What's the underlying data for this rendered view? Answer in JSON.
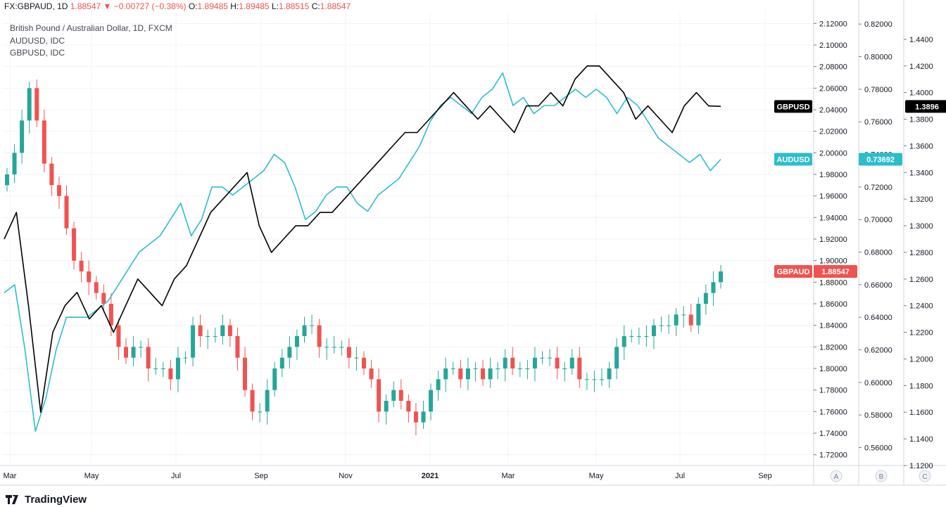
{
  "header": {
    "symbol": "FX:GBPAUD, 1D",
    "last": "1.88547",
    "change_arrow": "▼",
    "change": "−0.00727 (−0.38%)",
    "o_label": "O:",
    "o": "1.89485",
    "h_label": "H:",
    "h": "1.89485",
    "l_label": "L:",
    "l": "1.88515",
    "c_label": "C:",
    "c": "1.88547"
  },
  "legend": [
    "British Pound / Australian Dollar, 1D, FXCM",
    "AUDUSD, IDC",
    "GBPUSD, IDC"
  ],
  "brand": "TradingView",
  "colors": {
    "gbpaud_down": "#ef5350",
    "gbpaud_up": "#26a69a",
    "audusd": "#2cbdcc",
    "gbpusd": "#000000",
    "grid": "#f0f3fa"
  },
  "chart_data": {
    "type": "line",
    "x_axis": {
      "labels": [
        "Mar",
        "May",
        "Jul",
        "Sep",
        "Nov",
        "2021",
        "Mar",
        "May",
        "Jul",
        "Sep"
      ],
      "start": "2020-03",
      "end": "2021-09"
    },
    "axes": [
      {
        "id": "A",
        "series": "GBPAUD",
        "ylim": [
          1.71,
          2.13
        ],
        "ticks": [
          "2.12000",
          "2.10000",
          "2.08000",
          "2.06000",
          "2.04000",
          "2.02000",
          "2.00000",
          "1.98000",
          "1.96000",
          "1.94000",
          "1.92000",
          "1.90000",
          "1.88000",
          "1.86000",
          "1.84000",
          "1.82000",
          "1.80000",
          "1.78000",
          "1.76000",
          "1.74000",
          "1.72000"
        ],
        "last_label": "1.88547"
      },
      {
        "id": "B",
        "series": "AUDUSD",
        "ylim": [
          0.549,
          0.827
        ],
        "ticks": [
          "0.82000",
          "0.80000",
          "0.78000",
          "0.76000",
          "0.74000",
          "0.72000",
          "0.70000",
          "0.68000",
          "0.66000",
          "0.64000",
          "0.62000",
          "0.60000",
          "0.58000",
          "0.56000"
        ],
        "last_label": "0.73692"
      },
      {
        "id": "C",
        "series": "GBPUSD",
        "ylim": [
          1.12,
          1.46
        ],
        "ticks": [
          "1.4400",
          "1.4200",
          "1.4000",
          "1.3800",
          "1.3600",
          "1.3400",
          "1.3200",
          "1.3000",
          "1.2800",
          "1.2600",
          "1.2400",
          "1.2200",
          "1.2000",
          "1.1800",
          "1.1600",
          "1.1400",
          "1.1200"
        ],
        "last_label": "1.3896"
      }
    ],
    "series": [
      {
        "name": "GBPAUD",
        "style": "candles",
        "badge": "GBPAUD",
        "closes": [
          1.98,
          2.0,
          2.03,
          2.06,
          2.03,
          1.99,
          1.97,
          1.96,
          1.93,
          1.9,
          1.89,
          1.88,
          1.87,
          1.86,
          1.84,
          1.82,
          1.81,
          1.82,
          1.82,
          1.8,
          1.8,
          1.8,
          1.79,
          1.81,
          1.81,
          1.84,
          1.83,
          1.83,
          1.83,
          1.84,
          1.83,
          1.81,
          1.78,
          1.76,
          1.76,
          1.78,
          1.8,
          1.81,
          1.82,
          1.83,
          1.84,
          1.84,
          1.82,
          1.82,
          1.82,
          1.82,
          1.81,
          1.81,
          1.8,
          1.79,
          1.76,
          1.77,
          1.78,
          1.77,
          1.76,
          1.75,
          1.76,
          1.78,
          1.79,
          1.8,
          1.8,
          1.79,
          1.8,
          1.8,
          1.79,
          1.8,
          1.8,
          1.81,
          1.8,
          1.8,
          1.8,
          1.81,
          1.81,
          1.81,
          1.8,
          1.8,
          1.81,
          1.79,
          1.79,
          1.79,
          1.79,
          1.8,
          1.82,
          1.83,
          1.83,
          1.83,
          1.83,
          1.84,
          1.84,
          1.84,
          1.85,
          1.85,
          1.84,
          1.86,
          1.87,
          1.88,
          1.89
        ]
      },
      {
        "name": "AUDUSD",
        "style": "line",
        "badge": "AUDUSD",
        "values": [
          0.655,
          0.66,
          0.62,
          0.57,
          0.59,
          0.62,
          0.64,
          0.64,
          0.64,
          0.645,
          0.65,
          0.66,
          0.67,
          0.68,
          0.685,
          0.69,
          0.7,
          0.71,
          0.69,
          0.7,
          0.72,
          0.72,
          0.715,
          0.72,
          0.725,
          0.73,
          0.74,
          0.735,
          0.72,
          0.7,
          0.705,
          0.715,
          0.72,
          0.72,
          0.71,
          0.705,
          0.715,
          0.72,
          0.725,
          0.735,
          0.745,
          0.76,
          0.77,
          0.775,
          0.77,
          0.765,
          0.775,
          0.78,
          0.79,
          0.77,
          0.775,
          0.765,
          0.77,
          0.77,
          0.775,
          0.78,
          0.775,
          0.78,
          0.775,
          0.765,
          0.775,
          0.77,
          0.76,
          0.75,
          0.745,
          0.74,
          0.735,
          0.74,
          0.73,
          0.737
        ]
      },
      {
        "name": "GBPUSD",
        "style": "line",
        "badge": "GBPUSD",
        "values": [
          1.29,
          1.31,
          1.24,
          1.16,
          1.22,
          1.24,
          1.25,
          1.23,
          1.24,
          1.22,
          1.24,
          1.26,
          1.25,
          1.24,
          1.26,
          1.27,
          1.29,
          1.31,
          1.32,
          1.33,
          1.34,
          1.3,
          1.28,
          1.29,
          1.3,
          1.3,
          1.31,
          1.31,
          1.32,
          1.33,
          1.34,
          1.35,
          1.36,
          1.37,
          1.37,
          1.38,
          1.39,
          1.4,
          1.39,
          1.38,
          1.39,
          1.38,
          1.37,
          1.39,
          1.39,
          1.4,
          1.39,
          1.41,
          1.42,
          1.42,
          1.41,
          1.4,
          1.38,
          1.39,
          1.38,
          1.37,
          1.39,
          1.4,
          1.39,
          1.3896
        ]
      }
    ]
  }
}
